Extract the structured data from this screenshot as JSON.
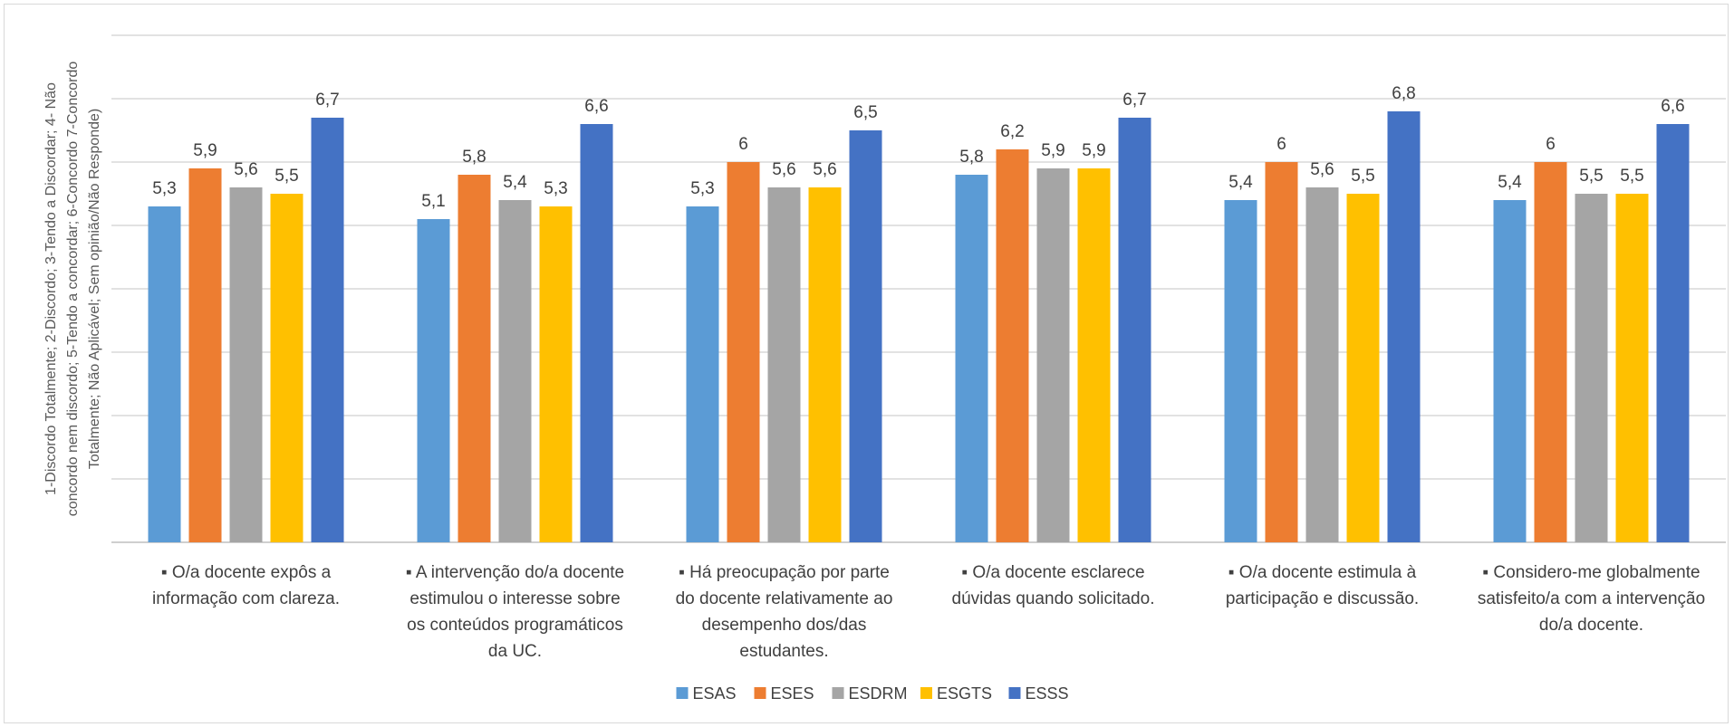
{
  "chart_data": {
    "type": "bar",
    "title": "",
    "xlabel": "",
    "ylabel_lines": [
      "1-Discordo Totalmente; 2-Discordo; 3-Tendo a Discordar; 4- Não",
      "concordo nem discordo; 5-Tendo a concordar; 6-Concordo 7-Concordo",
      "Totalmente; Não Aplicável; Sem opinião/Não Responde)"
    ],
    "ylim": [
      0,
      8
    ],
    "grid": true,
    "legend_position": "bottom",
    "categories": [
      [
        "▪ O/a docente expôs a",
        "informação com clareza."
      ],
      [
        "▪ A intervenção do/a docente",
        "estimulou o interesse sobre",
        "os conteúdos programáticos",
        "da UC."
      ],
      [
        "▪ Há preocupação por parte",
        "do docente relativamente ao",
        "desempenho dos/das",
        "estudantes."
      ],
      [
        "▪ O/a docente esclarece",
        "dúvidas quando solicitado."
      ],
      [
        "▪ O/a docente estimula à",
        "participação e discussão."
      ],
      [
        "▪ Considero-me globalmente",
        "satisfeito/a com a intervenção",
        "do/a docente."
      ]
    ],
    "series": [
      {
        "name": "ESAS",
        "color": "#5B9BD5",
        "values": [
          5.3,
          5.1,
          5.3,
          5.8,
          5.4,
          5.4
        ],
        "labels": [
          "5,3",
          "5,1",
          "5,3",
          "5,8",
          "5,4",
          "5,4"
        ]
      },
      {
        "name": "ESES",
        "color": "#ED7D31",
        "values": [
          5.9,
          5.8,
          6.0,
          6.2,
          6.0,
          6.0
        ],
        "labels": [
          "5,9",
          "5,8",
          "6",
          "6,2",
          "6",
          "6"
        ]
      },
      {
        "name": "ESDRM",
        "color": "#A5A5A5",
        "values": [
          5.6,
          5.4,
          5.6,
          5.9,
          5.6,
          5.5
        ],
        "labels": [
          "5,6",
          "5,4",
          "5,6",
          "5,9",
          "5,6",
          "5,5"
        ]
      },
      {
        "name": "ESGTS",
        "color": "#FFC000",
        "values": [
          5.5,
          5.3,
          5.6,
          5.9,
          5.5,
          5.5
        ],
        "labels": [
          "5,5",
          "5,3",
          "5,6",
          "5,9",
          "5,5",
          "5,5"
        ]
      },
      {
        "name": "ESSS",
        "color": "#4472C4",
        "values": [
          6.7,
          6.6,
          6.5,
          6.7,
          6.8,
          6.6
        ],
        "labels": [
          "6,7",
          "6,6",
          "6,5",
          "6,7",
          "6,8",
          "6,6"
        ]
      }
    ]
  }
}
